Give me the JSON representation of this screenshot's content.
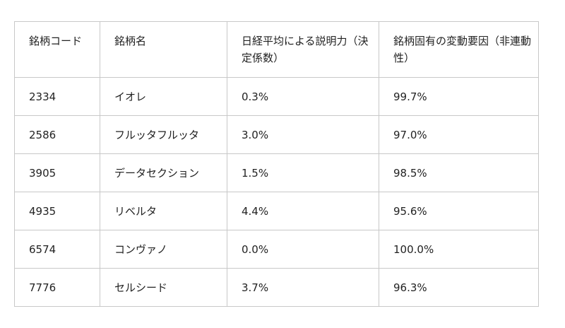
{
  "table": {
    "headers": [
      "銘柄コード",
      "銘柄名",
      "日経平均による説明力（決定係数）",
      "銘柄固有の変動要因（非連動性）"
    ],
    "rows": [
      [
        "2334",
        "イオレ",
        "0.3%",
        "99.7%"
      ],
      [
        "2586",
        "フルッタフルッタ",
        "3.0%",
        "97.0%"
      ],
      [
        "3905",
        "データセクション",
        "1.5%",
        "98.5%"
      ],
      [
        "4935",
        "リベルタ",
        "4.4%",
        "95.6%"
      ],
      [
        "6574",
        "コンヴァノ",
        "0.0%",
        "100.0%"
      ],
      [
        "7776",
        "セルシード",
        "3.7%",
        "96.3%"
      ]
    ]
  }
}
